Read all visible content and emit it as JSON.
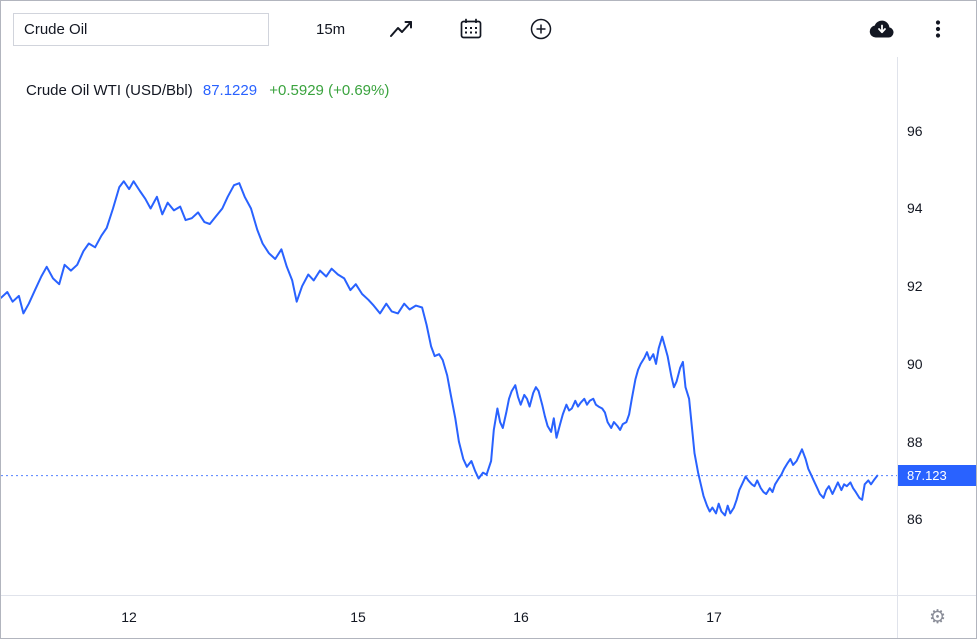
{
  "toolbar": {
    "search_value": "Crude Oil",
    "interval_label": "15m"
  },
  "legend": {
    "symbol_title": "Crude Oil WTI (USD/Bbl)",
    "price": "87.1229",
    "change": "+0.5929 (+0.69%)"
  },
  "icons": {
    "gear": "⚙"
  },
  "colors": {
    "accent": "#2962ff",
    "positive": "#3aa33e",
    "text": "#131722",
    "separator": "#e0e3eb",
    "muted": "#8a8d98",
    "border": "#b2b5be"
  },
  "chart_data": {
    "type": "line",
    "title": "Crude Oil WTI (USD/Bbl)",
    "grid": false,
    "line_color": "#2962ff",
    "y_axis": {
      "min": 84.05,
      "max": 97.9,
      "ticks": [
        96,
        94,
        92,
        90,
        88,
        86
      ]
    },
    "x_axis": {
      "ticks": [
        {
          "label": "12",
          "pos": 0.143
        },
        {
          "label": "15",
          "pos": 0.398
        },
        {
          "label": "16",
          "pos": 0.58
        },
        {
          "label": "17",
          "pos": 0.796
        }
      ]
    },
    "price_line": {
      "value": 87.123,
      "label": "87.123"
    },
    "series": [
      {
        "name": "Crude Oil WTI",
        "points": [
          [
            0,
            91.7
          ],
          [
            0.007,
            91.85
          ],
          [
            0.013,
            91.6
          ],
          [
            0.02,
            91.75
          ],
          [
            0.025,
            91.3
          ],
          [
            0.031,
            91.55
          ],
          [
            0.038,
            91.9
          ],
          [
            0.045,
            92.25
          ],
          [
            0.051,
            92.5
          ],
          [
            0.058,
            92.2
          ],
          [
            0.065,
            92.05
          ],
          [
            0.071,
            92.55
          ],
          [
            0.078,
            92.4
          ],
          [
            0.085,
            92.55
          ],
          [
            0.092,
            92.9
          ],
          [
            0.098,
            93.1
          ],
          [
            0.105,
            93.0
          ],
          [
            0.112,
            93.3
          ],
          [
            0.118,
            93.5
          ],
          [
            0.125,
            94.0
          ],
          [
            0.132,
            94.55
          ],
          [
            0.137,
            94.7
          ],
          [
            0.143,
            94.5
          ],
          [
            0.148,
            94.7
          ],
          [
            0.155,
            94.45
          ],
          [
            0.161,
            94.25
          ],
          [
            0.167,
            94.0
          ],
          [
            0.174,
            94.3
          ],
          [
            0.18,
            93.85
          ],
          [
            0.186,
            94.15
          ],
          [
            0.193,
            93.95
          ],
          [
            0.2,
            94.05
          ],
          [
            0.206,
            93.7
          ],
          [
            0.213,
            93.75
          ],
          [
            0.22,
            93.9
          ],
          [
            0.227,
            93.65
          ],
          [
            0.233,
            93.6
          ],
          [
            0.24,
            93.8
          ],
          [
            0.247,
            94.0
          ],
          [
            0.253,
            94.3
          ],
          [
            0.26,
            94.6
          ],
          [
            0.266,
            94.65
          ],
          [
            0.272,
            94.3
          ],
          [
            0.279,
            94.0
          ],
          [
            0.286,
            93.45
          ],
          [
            0.292,
            93.1
          ],
          [
            0.299,
            92.85
          ],
          [
            0.306,
            92.7
          ],
          [
            0.313,
            92.95
          ],
          [
            0.319,
            92.5
          ],
          [
            0.325,
            92.15
          ],
          [
            0.33,
            91.6
          ],
          [
            0.336,
            92.0
          ],
          [
            0.343,
            92.3
          ],
          [
            0.349,
            92.15
          ],
          [
            0.356,
            92.4
          ],
          [
            0.363,
            92.25
          ],
          [
            0.369,
            92.45
          ],
          [
            0.376,
            92.3
          ],
          [
            0.383,
            92.2
          ],
          [
            0.39,
            91.9
          ],
          [
            0.396,
            92.05
          ],
          [
            0.403,
            91.8
          ],
          [
            0.41,
            91.65
          ],
          [
            0.416,
            91.5
          ],
          [
            0.423,
            91.3
          ],
          [
            0.43,
            91.55
          ],
          [
            0.436,
            91.35
          ],
          [
            0.443,
            91.3
          ],
          [
            0.45,
            91.55
          ],
          [
            0.456,
            91.4
          ],
          [
            0.463,
            91.5
          ],
          [
            0.47,
            91.45
          ],
          [
            0.475,
            91.0
          ],
          [
            0.48,
            90.45
          ],
          [
            0.484,
            90.2
          ],
          [
            0.489,
            90.25
          ],
          [
            0.493,
            90.1
          ],
          [
            0.498,
            89.7
          ],
          [
            0.502,
            89.2
          ],
          [
            0.507,
            88.6
          ],
          [
            0.511,
            88.0
          ],
          [
            0.516,
            87.55
          ],
          [
            0.52,
            87.35
          ],
          [
            0.525,
            87.5
          ],
          [
            0.529,
            87.25
          ],
          [
            0.533,
            87.05
          ],
          [
            0.538,
            87.2
          ],
          [
            0.542,
            87.15
          ],
          [
            0.547,
            87.5
          ],
          [
            0.55,
            88.3
          ],
          [
            0.554,
            88.85
          ],
          [
            0.557,
            88.5
          ],
          [
            0.56,
            88.35
          ],
          [
            0.564,
            88.75
          ],
          [
            0.567,
            89.1
          ],
          [
            0.57,
            89.3
          ],
          [
            0.574,
            89.45
          ],
          [
            0.577,
            89.15
          ],
          [
            0.58,
            88.95
          ],
          [
            0.584,
            89.2
          ],
          [
            0.587,
            89.1
          ],
          [
            0.59,
            88.9
          ],
          [
            0.594,
            89.25
          ],
          [
            0.597,
            89.4
          ],
          [
            0.6,
            89.3
          ],
          [
            0.604,
            88.95
          ],
          [
            0.607,
            88.65
          ],
          [
            0.61,
            88.4
          ],
          [
            0.614,
            88.25
          ],
          [
            0.617,
            88.6
          ],
          [
            0.62,
            88.1
          ],
          [
            0.624,
            88.45
          ],
          [
            0.627,
            88.7
          ],
          [
            0.631,
            88.95
          ],
          [
            0.634,
            88.8
          ],
          [
            0.637,
            88.85
          ],
          [
            0.641,
            89.05
          ],
          [
            0.644,
            88.9
          ],
          [
            0.647,
            89.0
          ],
          [
            0.651,
            89.1
          ],
          [
            0.654,
            88.95
          ],
          [
            0.657,
            89.05
          ],
          [
            0.661,
            89.1
          ],
          [
            0.664,
            88.95
          ],
          [
            0.667,
            88.9
          ],
          [
            0.671,
            88.85
          ],
          [
            0.674,
            88.75
          ],
          [
            0.677,
            88.5
          ],
          [
            0.681,
            88.35
          ],
          [
            0.684,
            88.5
          ],
          [
            0.688,
            88.4
          ],
          [
            0.691,
            88.3
          ],
          [
            0.694,
            88.45
          ],
          [
            0.698,
            88.5
          ],
          [
            0.701,
            88.7
          ],
          [
            0.704,
            89.1
          ],
          [
            0.708,
            89.6
          ],
          [
            0.711,
            89.85
          ],
          [
            0.714,
            90.0
          ],
          [
            0.718,
            90.15
          ],
          [
            0.721,
            90.3
          ],
          [
            0.724,
            90.1
          ],
          [
            0.728,
            90.25
          ],
          [
            0.731,
            90.0
          ],
          [
            0.734,
            90.4
          ],
          [
            0.738,
            90.7
          ],
          [
            0.741,
            90.45
          ],
          [
            0.744,
            90.2
          ],
          [
            0.748,
            89.7
          ],
          [
            0.751,
            89.4
          ],
          [
            0.754,
            89.55
          ],
          [
            0.758,
            89.9
          ],
          [
            0.761,
            90.05
          ],
          [
            0.764,
            89.4
          ],
          [
            0.768,
            89.1
          ],
          [
            0.771,
            88.4
          ],
          [
            0.774,
            87.7
          ],
          [
            0.778,
            87.2
          ],
          [
            0.781,
            86.9
          ],
          [
            0.784,
            86.6
          ],
          [
            0.788,
            86.35
          ],
          [
            0.791,
            86.2
          ],
          [
            0.794,
            86.3
          ],
          [
            0.798,
            86.15
          ],
          [
            0.801,
            86.4
          ],
          [
            0.804,
            86.2
          ],
          [
            0.808,
            86.1
          ],
          [
            0.811,
            86.35
          ],
          [
            0.814,
            86.15
          ],
          [
            0.818,
            86.3
          ],
          [
            0.821,
            86.5
          ],
          [
            0.824,
            86.75
          ],
          [
            0.828,
            86.95
          ],
          [
            0.831,
            87.1
          ],
          [
            0.834,
            87.0
          ],
          [
            0.838,
            86.9
          ],
          [
            0.841,
            86.85
          ],
          [
            0.844,
            87.0
          ],
          [
            0.848,
            86.8
          ],
          [
            0.851,
            86.7
          ],
          [
            0.854,
            86.65
          ],
          [
            0.858,
            86.8
          ],
          [
            0.861,
            86.7
          ],
          [
            0.864,
            86.9
          ],
          [
            0.868,
            87.05
          ],
          [
            0.871,
            87.15
          ],
          [
            0.874,
            87.3
          ],
          [
            0.878,
            87.45
          ],
          [
            0.881,
            87.55
          ],
          [
            0.884,
            87.4
          ],
          [
            0.888,
            87.5
          ],
          [
            0.891,
            87.65
          ],
          [
            0.894,
            87.8
          ],
          [
            0.898,
            87.55
          ],
          [
            0.901,
            87.3
          ],
          [
            0.904,
            87.15
          ],
          [
            0.908,
            86.95
          ],
          [
            0.911,
            86.8
          ],
          [
            0.914,
            86.65
          ],
          [
            0.918,
            86.55
          ],
          [
            0.921,
            86.75
          ],
          [
            0.924,
            86.85
          ],
          [
            0.928,
            86.65
          ],
          [
            0.931,
            86.8
          ],
          [
            0.934,
            86.95
          ],
          [
            0.938,
            86.75
          ],
          [
            0.941,
            86.9
          ],
          [
            0.944,
            86.85
          ],
          [
            0.948,
            86.95
          ],
          [
            0.951,
            86.8
          ],
          [
            0.954,
            86.7
          ],
          [
            0.958,
            86.55
          ],
          [
            0.961,
            86.5
          ],
          [
            0.964,
            86.9
          ],
          [
            0.968,
            87.0
          ],
          [
            0.971,
            86.9
          ],
          [
            0.974,
            87.0
          ],
          [
            0.978,
            87.12
          ]
        ]
      }
    ]
  }
}
